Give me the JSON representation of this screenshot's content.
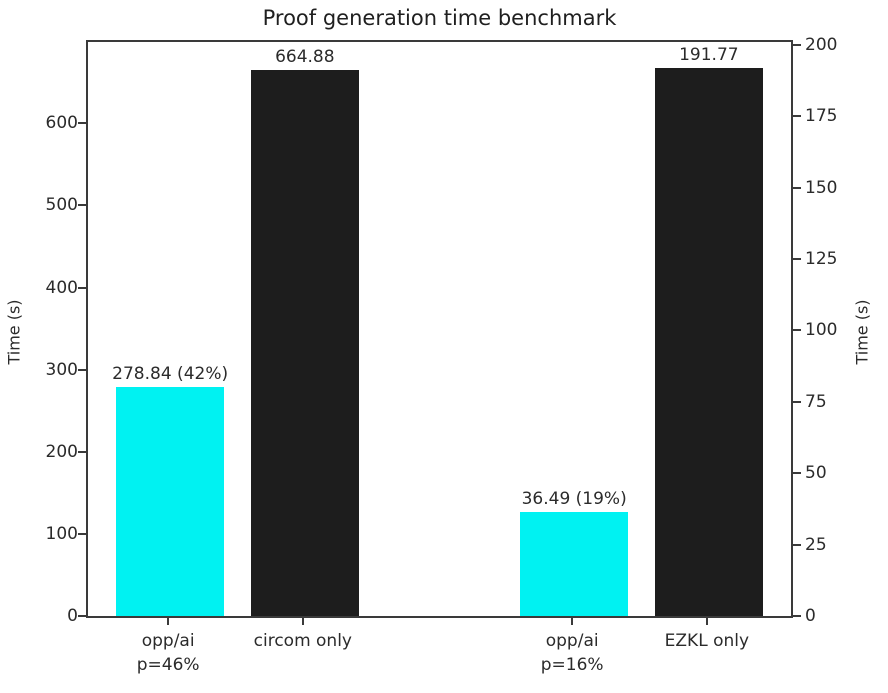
{
  "chart_data": {
    "type": "bar",
    "title": "Proof generation time benchmark",
    "left_axis": {
      "label": "Time (s)",
      "ticks": [
        0,
        100,
        200,
        300,
        400,
        500,
        600
      ],
      "ylim": [
        0,
        699
      ]
    },
    "right_axis": {
      "label": "Time (s)",
      "ticks": [
        0,
        25,
        50,
        75,
        100,
        125,
        150,
        175,
        200
      ],
      "ylim": [
        0,
        201
      ]
    },
    "xlim": [
      -0.61,
      4.61
    ],
    "bar_width": 0.8,
    "grid": false,
    "legend": "none",
    "colors": {
      "highlight": "#00f2f2",
      "baseline": "#1d1d1d"
    },
    "bars": [
      {
        "x": 0,
        "category": "opp/ai\np=46%",
        "value": 278.84,
        "annotation": "278.84 (42%)",
        "axis": "left",
        "color": "#00f2f2"
      },
      {
        "x": 1,
        "category": "circom only",
        "value": 664.88,
        "annotation": "664.88",
        "axis": "left",
        "color": "#1d1d1d"
      },
      {
        "x": 3,
        "category": "opp/ai\np=16%",
        "value": 36.49,
        "annotation": "36.49 (19%)",
        "axis": "right",
        "color": "#00f2f2"
      },
      {
        "x": 4,
        "category": "EZKL only",
        "value": 191.77,
        "annotation": "191.77",
        "axis": "right",
        "color": "#1d1d1d"
      }
    ]
  }
}
